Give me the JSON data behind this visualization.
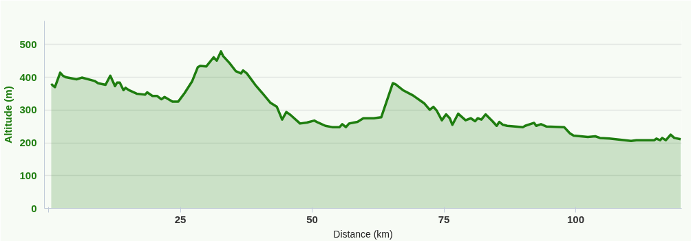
{
  "chart_data": {
    "type": "area",
    "xlabel": "Distance (km)",
    "ylabel": "Altitude (m)",
    "xlim": [
      -0.8,
      120.1
    ],
    "ylim": [
      0,
      572
    ],
    "xticks": [
      {
        "value": 0,
        "label": null
      },
      25,
      50,
      75,
      100
    ],
    "yticks": [
      0,
      100,
      200,
      300,
      400,
      500
    ],
    "grid": "y",
    "series": [
      {
        "color": "#1e7d0f",
        "x": [
          0.5,
          0.8,
          1.2,
          2.2,
          2.7,
          3.3,
          5.3,
          6.3,
          8.7,
          9.4,
          10.8,
          11.7,
          12.6,
          13.0,
          13.5,
          14.2,
          14.6,
          15.2,
          16.7,
          18.3,
          18.7,
          19.7,
          20.6,
          21.4,
          22.0,
          23.5,
          24.6,
          25.8,
          27.2,
          28.3,
          28.8,
          29.9,
          31.3,
          31.9,
          32.7,
          33.1,
          34.3,
          35.5,
          36.5,
          36.9,
          37.6,
          39.2,
          40.8,
          42.1,
          43.3,
          44.3,
          45.1,
          45.9,
          47.7,
          49.0,
          50.4,
          51.1,
          52.5,
          53.8,
          55.2,
          55.7,
          56.4,
          57.0,
          57.9,
          58.6,
          59.7,
          61.7,
          63.1,
          65.3,
          65.8,
          67.2,
          69.1,
          71.3,
          72.3,
          73.0,
          73.6,
          74.6,
          75.4,
          76.1,
          76.6,
          77.7,
          79.1,
          80.1,
          80.9,
          81.4,
          82.1,
          82.9,
          84.2,
          85.0,
          85.5,
          86.2,
          87.0,
          90.0,
          90.4,
          92.1,
          92.5,
          93.4,
          94.4,
          97.8,
          98.9,
          99.6,
          102.3,
          103.7,
          104.6,
          106.4,
          110.5,
          111.5,
          114.9,
          115.3,
          116.0,
          116.4,
          117.1,
          118.0,
          118.7,
          119.9
        ],
        "values": [
          380,
          375,
          370,
          414,
          405,
          400,
          394,
          399,
          389,
          382,
          377,
          405,
          373,
          384,
          384,
          361,
          368,
          361,
          350,
          347,
          354,
          343,
          343,
          333,
          340,
          326,
          326,
          352,
          387,
          431,
          435,
          433,
          461,
          451,
          479,
          465,
          444,
          419,
          412,
          421,
          412,
          377,
          347,
          322,
          310,
          271,
          294,
          285,
          259,
          262,
          268,
          262,
          252,
          248,
          248,
          257,
          248,
          259,
          262,
          264,
          275,
          275,
          278,
          382,
          379,
          361,
          345,
          320,
          301,
          310,
          299,
          269,
          287,
          275,
          255,
          289,
          269,
          275,
          266,
          275,
          271,
          287,
          266,
          252,
          264,
          255,
          252,
          248,
          252,
          261,
          252,
          257,
          250,
          248,
          229,
          222,
          218,
          220,
          215,
          213,
          206,
          208,
          208,
          213,
          208,
          215,
          208,
          225,
          215,
          211
        ]
      }
    ]
  }
}
